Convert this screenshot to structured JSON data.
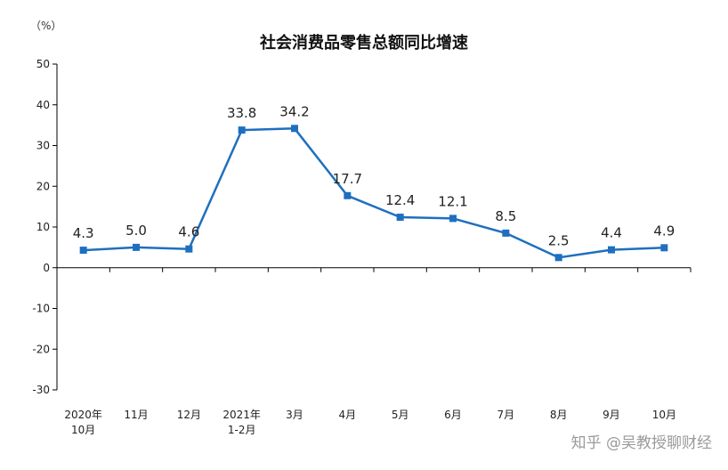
{
  "chart_data": {
    "type": "line",
    "title": "社会消费品零售总额同比增速",
    "ylabel": "（%）",
    "ylim": [
      -30,
      50
    ],
    "yticks": [
      50,
      40,
      30,
      20,
      10,
      0,
      -10,
      -20,
      -30
    ],
    "grid": false,
    "categories": [
      [
        "2020年",
        "10月"
      ],
      [
        "11月"
      ],
      [
        "12月"
      ],
      [
        "2021年",
        "1-2月"
      ],
      [
        "3月"
      ],
      [
        "4月"
      ],
      [
        "5月"
      ],
      [
        "6月"
      ],
      [
        "7月"
      ],
      [
        "8月"
      ],
      [
        "9月"
      ],
      [
        "10月"
      ]
    ],
    "series": [
      {
        "values": [
          4.3,
          5.0,
          4.6,
          33.8,
          34.2,
          17.7,
          12.4,
          12.1,
          8.5,
          2.5,
          4.4,
          4.9
        ]
      }
    ],
    "data_labels": [
      "4.3",
      "5.0",
      "4.6",
      "33.8",
      "34.2",
      "17.7",
      "12.4",
      "12.1",
      "8.5",
      "2.5",
      "4.4",
      "4.9"
    ],
    "colors": {
      "line": "#1f6fbf",
      "axis": "#000000"
    }
  },
  "watermark": "知乎 @吴教授聊财经"
}
